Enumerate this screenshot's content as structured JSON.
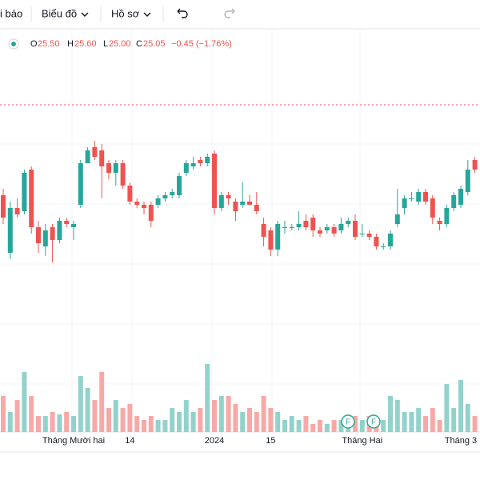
{
  "toolbar": {
    "indicators": "i báo",
    "chart": "Biểu đồ",
    "profile": "Hồ sơ"
  },
  "legend": {
    "o_label": "O",
    "o": "25.50",
    "h_label": "H",
    "h": "25.60",
    "l_label": "L",
    "l": "25.00",
    "c_label": "C",
    "c": "25.05",
    "change": "−0.45 (−1.76%)"
  },
  "chart_data": {
    "type": "candlestick",
    "categories": [
      null,
      null,
      null,
      null,
      null,
      null,
      null,
      null,
      null,
      null,
      "Tháng Mười hai",
      null,
      null,
      null,
      null,
      null,
      null,
      null,
      "14",
      null,
      null,
      null,
      null,
      null,
      null,
      null,
      null,
      null,
      null,
      null,
      "2024",
      null,
      null,
      null,
      null,
      null,
      null,
      null,
      "15",
      null,
      null,
      null,
      null,
      null,
      null,
      null,
      null,
      null,
      null,
      null,
      null,
      "Tháng Hai",
      null,
      null,
      null,
      null,
      null,
      null,
      null,
      null,
      null,
      null,
      null,
      null,
      null,
      "Tháng 3",
      null,
      null
    ],
    "open": [
      22.9,
      21.1,
      22.5,
      22.4,
      23.7,
      21.9,
      21.3,
      21.9,
      21.5,
      22.1,
      21.9,
      22.6,
      23.9,
      24.4,
      24.3,
      23.9,
      23.6,
      23.9,
      23.2,
      22.7,
      22.6,
      22.6,
      22.6,
      22.8,
      22.9,
      22.9,
      23.6,
      23.8,
      24.0,
      23.9,
      24.2,
      22.5,
      22.9,
      22.7,
      22.6,
      22.7,
      22.6,
      22.0,
      21.8,
      21.2,
      21.9,
      21.9,
      21.9,
      22.1,
      22.2,
      21.8,
      21.8,
      21.9,
      21.8,
      22.0,
      22.1,
      21.7,
      21.7,
      21.6,
      21.3,
      21.3,
      22.0,
      22.5,
      22.8,
      22.7,
      23.0,
      22.8,
      22.1,
      22.0,
      22.5,
      22.6,
      23.0,
      24.0
    ],
    "high": [
      23.1,
      22.7,
      22.8,
      23.7,
      23.8,
      22.1,
      22.0,
      22.0,
      22.2,
      22.2,
      22.1,
      24.0,
      24.4,
      24.6,
      24.5,
      24.0,
      24.0,
      24.0,
      23.3,
      22.8,
      22.7,
      22.7,
      22.9,
      23.0,
      23.1,
      23.6,
      24.0,
      24.1,
      24.1,
      24.2,
      24.3,
      23.0,
      23.0,
      22.8,
      23.3,
      22.9,
      23.0,
      22.2,
      21.9,
      22.1,
      22.1,
      22.0,
      22.4,
      22.3,
      22.3,
      21.9,
      22.0,
      22.0,
      22.2,
      22.2,
      22.3,
      22.0,
      21.8,
      21.7,
      21.4,
      21.8,
      23.1,
      22.9,
      23.0,
      23.1,
      23.1,
      22.9,
      22.2,
      22.6,
      23.0,
      23.2,
      24.0,
      24.1
    ],
    "low": [
      22.0,
      20.9,
      22.2,
      22.3,
      21.7,
      21.1,
      21.0,
      20.8,
      21.4,
      21.9,
      21.5,
      22.5,
      23.9,
      24.0,
      22.8,
      23.4,
      23.2,
      23.1,
      22.6,
      22.5,
      22.3,
      21.9,
      22.5,
      22.7,
      22.8,
      22.8,
      23.5,
      23.7,
      23.8,
      23.8,
      22.3,
      22.4,
      22.6,
      22.1,
      22.5,
      22.6,
      22.3,
      21.3,
      21.0,
      21.0,
      21.7,
      21.8,
      21.8,
      21.8,
      21.6,
      21.6,
      21.7,
      21.6,
      21.7,
      21.9,
      21.5,
      21.6,
      21.5,
      21.2,
      21.2,
      21.2,
      21.9,
      22.3,
      22.7,
      22.6,
      22.6,
      22.0,
      21.8,
      21.9,
      22.4,
      22.5,
      22.9,
      23.6
    ],
    "close": [
      22.2,
      22.5,
      22.3,
      23.6,
      21.9,
      21.4,
      21.8,
      21.5,
      22.1,
      22.0,
      22.0,
      23.9,
      24.3,
      24.1,
      23.8,
      23.6,
      23.9,
      23.2,
      22.7,
      22.6,
      22.5,
      22.1,
      22.8,
      22.9,
      23.0,
      23.5,
      23.9,
      23.9,
      23.9,
      24.1,
      22.5,
      22.9,
      22.8,
      22.4,
      22.7,
      22.6,
      22.4,
      21.6,
      21.2,
      22.0,
      21.9,
      21.9,
      22.0,
      21.9,
      21.8,
      21.7,
      21.9,
      21.7,
      22.0,
      22.1,
      21.6,
      21.7,
      21.6,
      21.3,
      21.3,
      21.7,
      22.3,
      22.8,
      22.8,
      23.0,
      22.7,
      22.2,
      22.0,
      22.5,
      22.9,
      23.1,
      23.7,
      23.7
    ],
    "volume": [
      45,
      25,
      40,
      75,
      45,
      20,
      20,
      25,
      22,
      25,
      20,
      70,
      55,
      40,
      75,
      30,
      40,
      30,
      35,
      20,
      15,
      20,
      15,
      15,
      30,
      25,
      40,
      25,
      30,
      85,
      40,
      45,
      45,
      35,
      25,
      30,
      25,
      45,
      30,
      25,
      15,
      20,
      15,
      20,
      10,
      15,
      10,
      15,
      15,
      15,
      20,
      15,
      20,
      10,
      15,
      45,
      40,
      25,
      25,
      30,
      20,
      30,
      15,
      60,
      30,
      65,
      35,
      20
    ],
    "ylim": [
      15.5,
      28
    ],
    "volume_ylim": [
      0,
      500
    ],
    "up_color": "#26a69a",
    "down_color": "#ef5350",
    "up_volume_color": "#93d2cb",
    "down_volume_color": "#f7a9a7",
    "markers": [
      "F",
      "F"
    ]
  }
}
